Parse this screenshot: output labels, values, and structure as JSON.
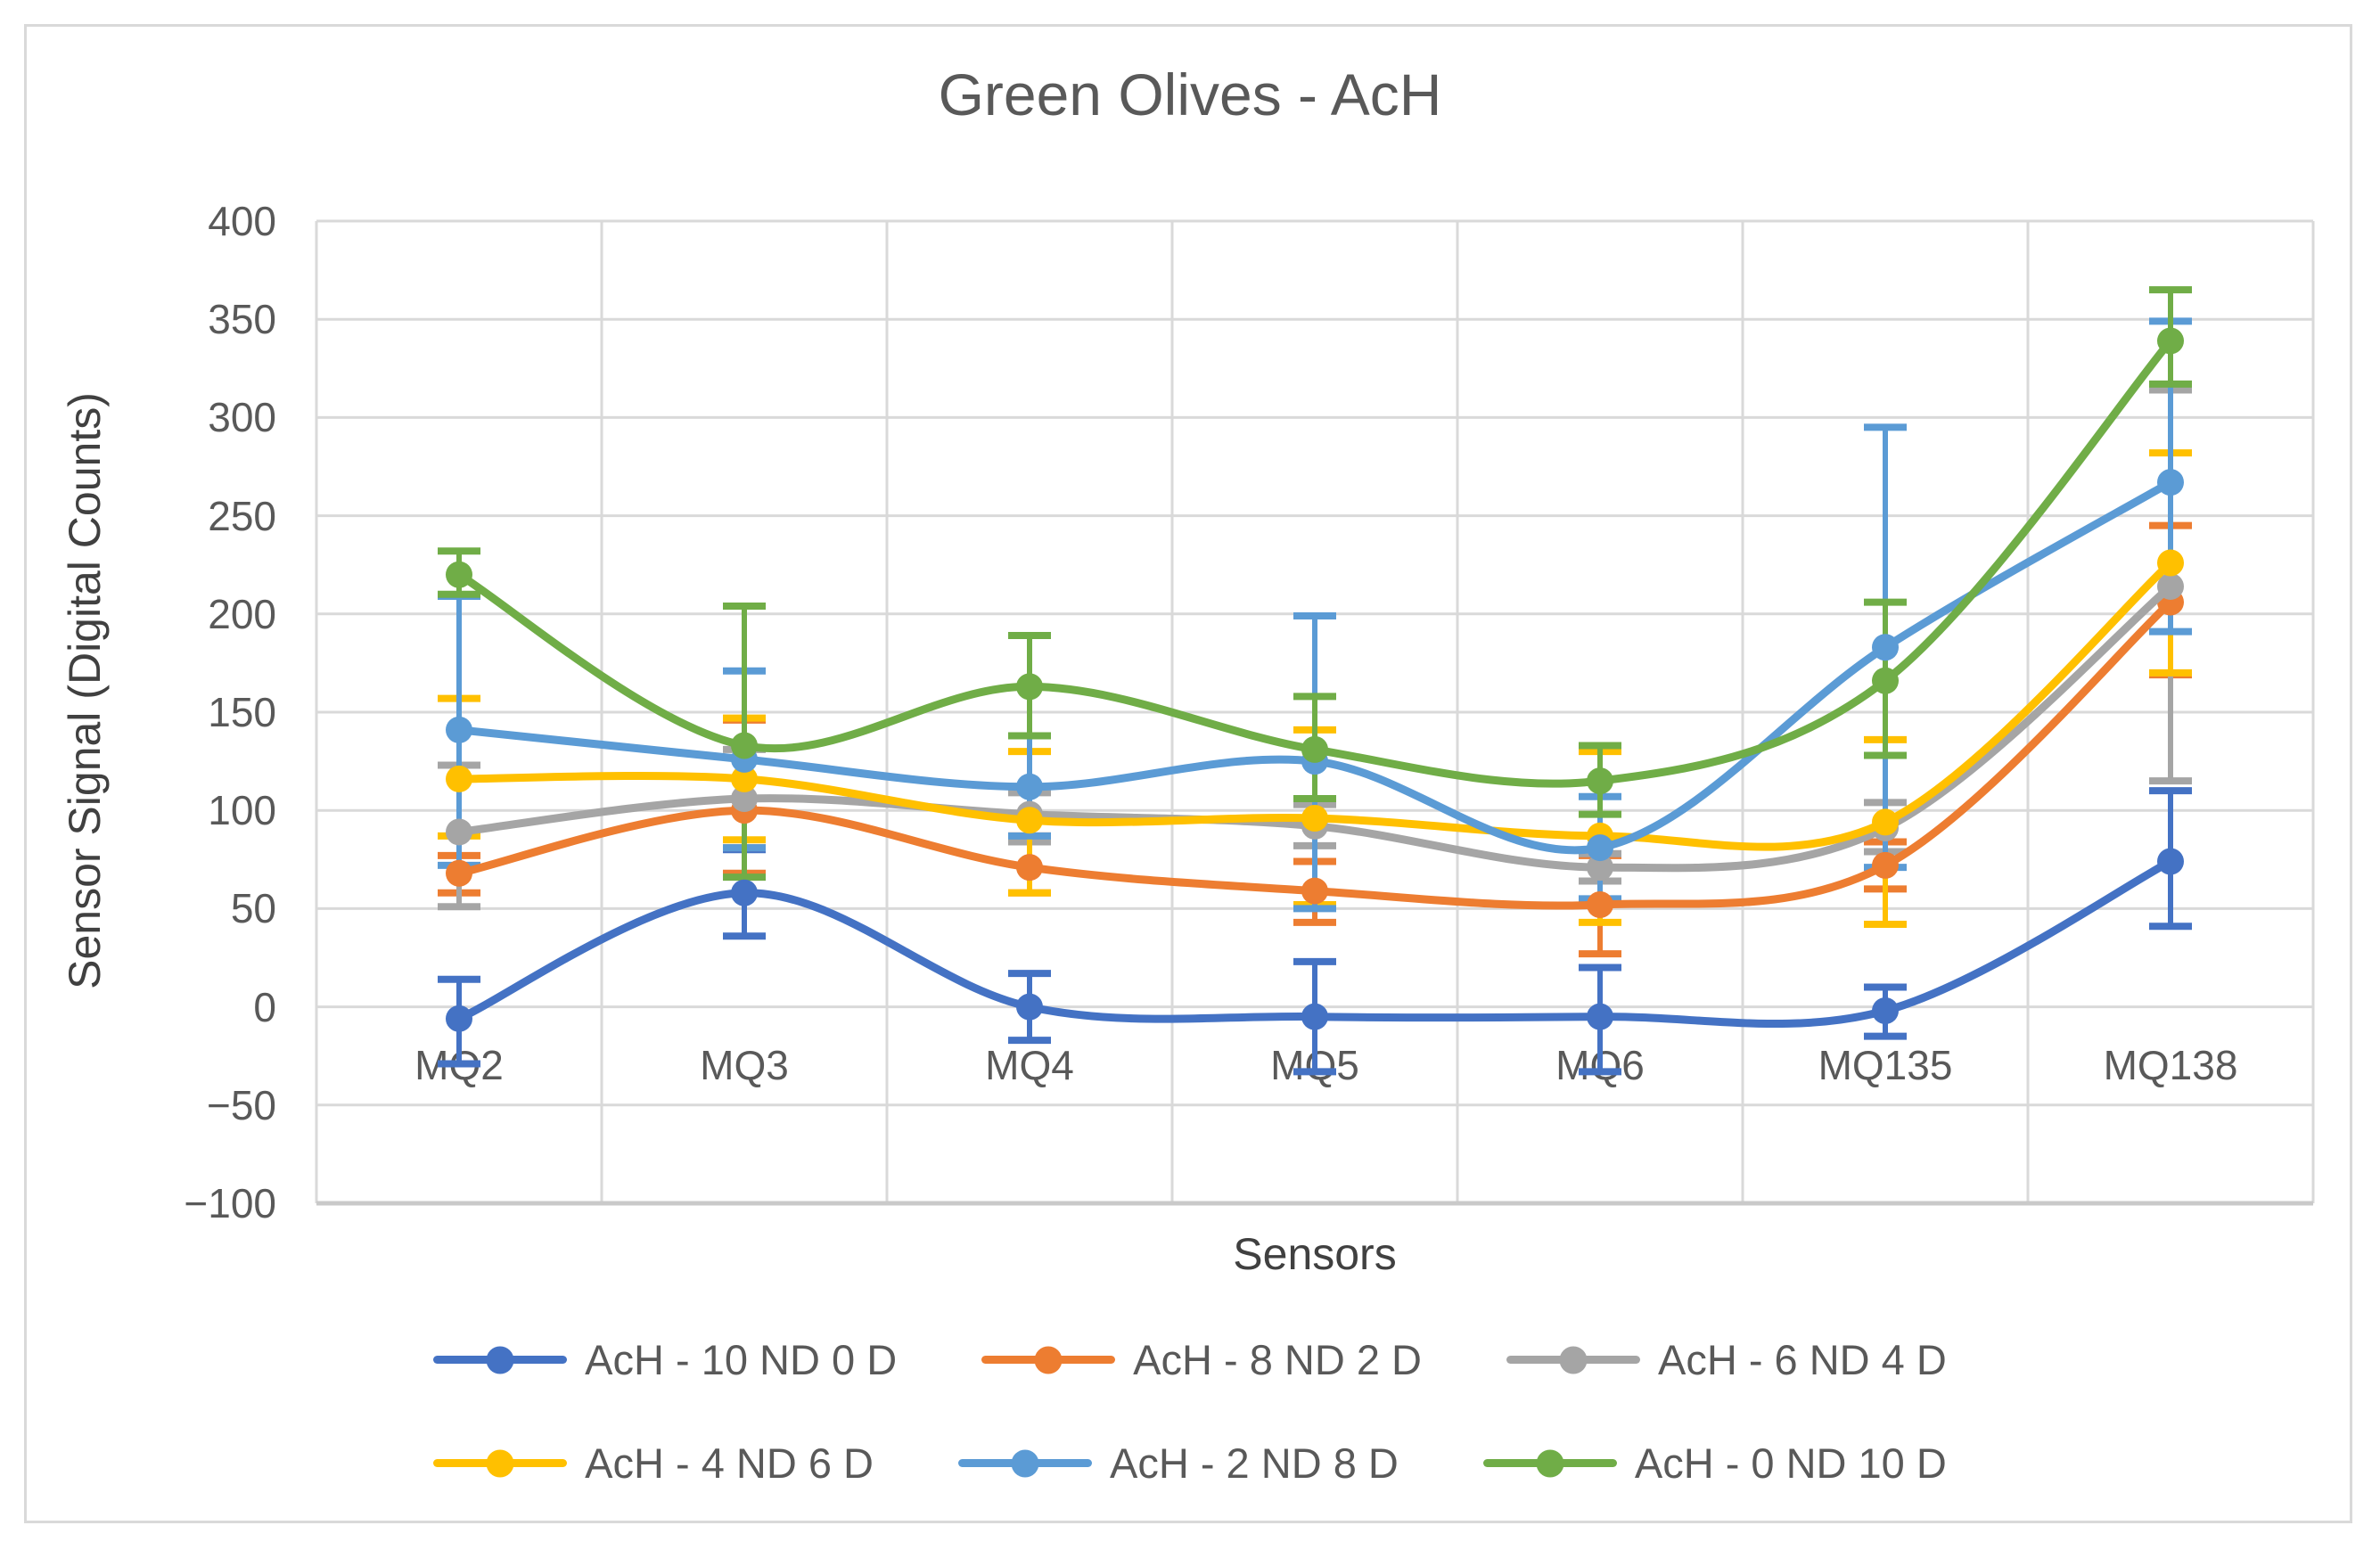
{
  "chart_data": {
    "type": "line",
    "title": "Green Olives - AcH",
    "xlabel": "Sensors",
    "ylabel": "Sensor Signal (Digital Counts)",
    "categories": [
      "MQ2",
      "MQ3",
      "MQ4",
      "MQ5",
      "MQ6",
      "MQ135",
      "MQ138"
    ],
    "y_axis": {
      "min": -100,
      "max": 400,
      "step": 50,
      "tick_values": [
        400,
        350,
        300,
        250,
        200,
        150,
        100,
        50,
        0,
        -50,
        -100
      ],
      "tick_labels": [
        "400",
        "350",
        "300",
        "250",
        "200",
        "150",
        "100",
        "50",
        "0",
        "−50",
        "−100"
      ]
    },
    "grid": true,
    "smooth": true,
    "marker": "circle",
    "error_bars": true,
    "legend_position": "bottom",
    "legend_rows": [
      [
        0,
        1,
        2
      ],
      [
        3,
        4,
        5
      ]
    ],
    "series": [
      {
        "name": "AcH - 10 ND 0 D",
        "color": "#4472C4",
        "values": [
          -6,
          58,
          0,
          -5,
          -5,
          -2,
          74
        ],
        "err_plus": [
          20,
          22,
          17,
          28,
          25,
          12,
          36
        ],
        "err_minus": [
          23,
          22,
          17,
          28,
          28,
          13,
          33
        ]
      },
      {
        "name": "AcH - 8 ND 2 D",
        "color": "#ED7D31",
        "values": [
          68,
          100,
          71,
          59,
          52,
          72,
          206
        ],
        "err_plus": [
          9,
          46,
          16,
          15,
          25,
          12,
          39
        ],
        "err_minus": [
          10,
          32,
          13,
          16,
          25,
          12,
          37
        ]
      },
      {
        "name": "AcH - 6 ND 4 D",
        "color": "#A5A5A5",
        "values": [
          89,
          106,
          98,
          92,
          71,
          91,
          214
        ],
        "err_plus": [
          34,
          25,
          11,
          11,
          7,
          13,
          100
        ],
        "err_minus": [
          38,
          25,
          14,
          10,
          7,
          12,
          99
        ]
      },
      {
        "name": "AcH - 4 ND 6 D",
        "color": "#FFC000",
        "values": [
          116,
          116,
          95,
          96,
          87,
          94,
          226
        ],
        "err_plus": [
          41,
          31,
          35,
          45,
          43,
          42,
          56
        ],
        "err_minus": [
          29,
          31,
          37,
          44,
          44,
          52,
          56
        ]
      },
      {
        "name": "AcH - 2 ND 8 D",
        "color": "#5B9BD5",
        "values": [
          141,
          126,
          112,
          125,
          81,
          183,
          267
        ],
        "err_plus": [
          68,
          45,
          26,
          74,
          26,
          112,
          82
        ],
        "err_minus": [
          69,
          45,
          25,
          75,
          26,
          112,
          76
        ]
      },
      {
        "name": "AcH - 0 ND 10 D",
        "color": "#70AD47",
        "values": [
          220,
          133,
          163,
          131,
          115,
          166,
          339
        ],
        "err_plus": [
          12,
          71,
          26,
          27,
          18,
          40,
          26
        ],
        "err_minus": [
          10,
          67,
          25,
          25,
          17,
          38,
          22
        ]
      }
    ],
    "colors": {
      "grid": "#D9D9D9",
      "axis_line": "#C9C9C9",
      "text": "#595959",
      "background": "#FFFFFF",
      "frame_border": "#D9D9D9"
    }
  }
}
